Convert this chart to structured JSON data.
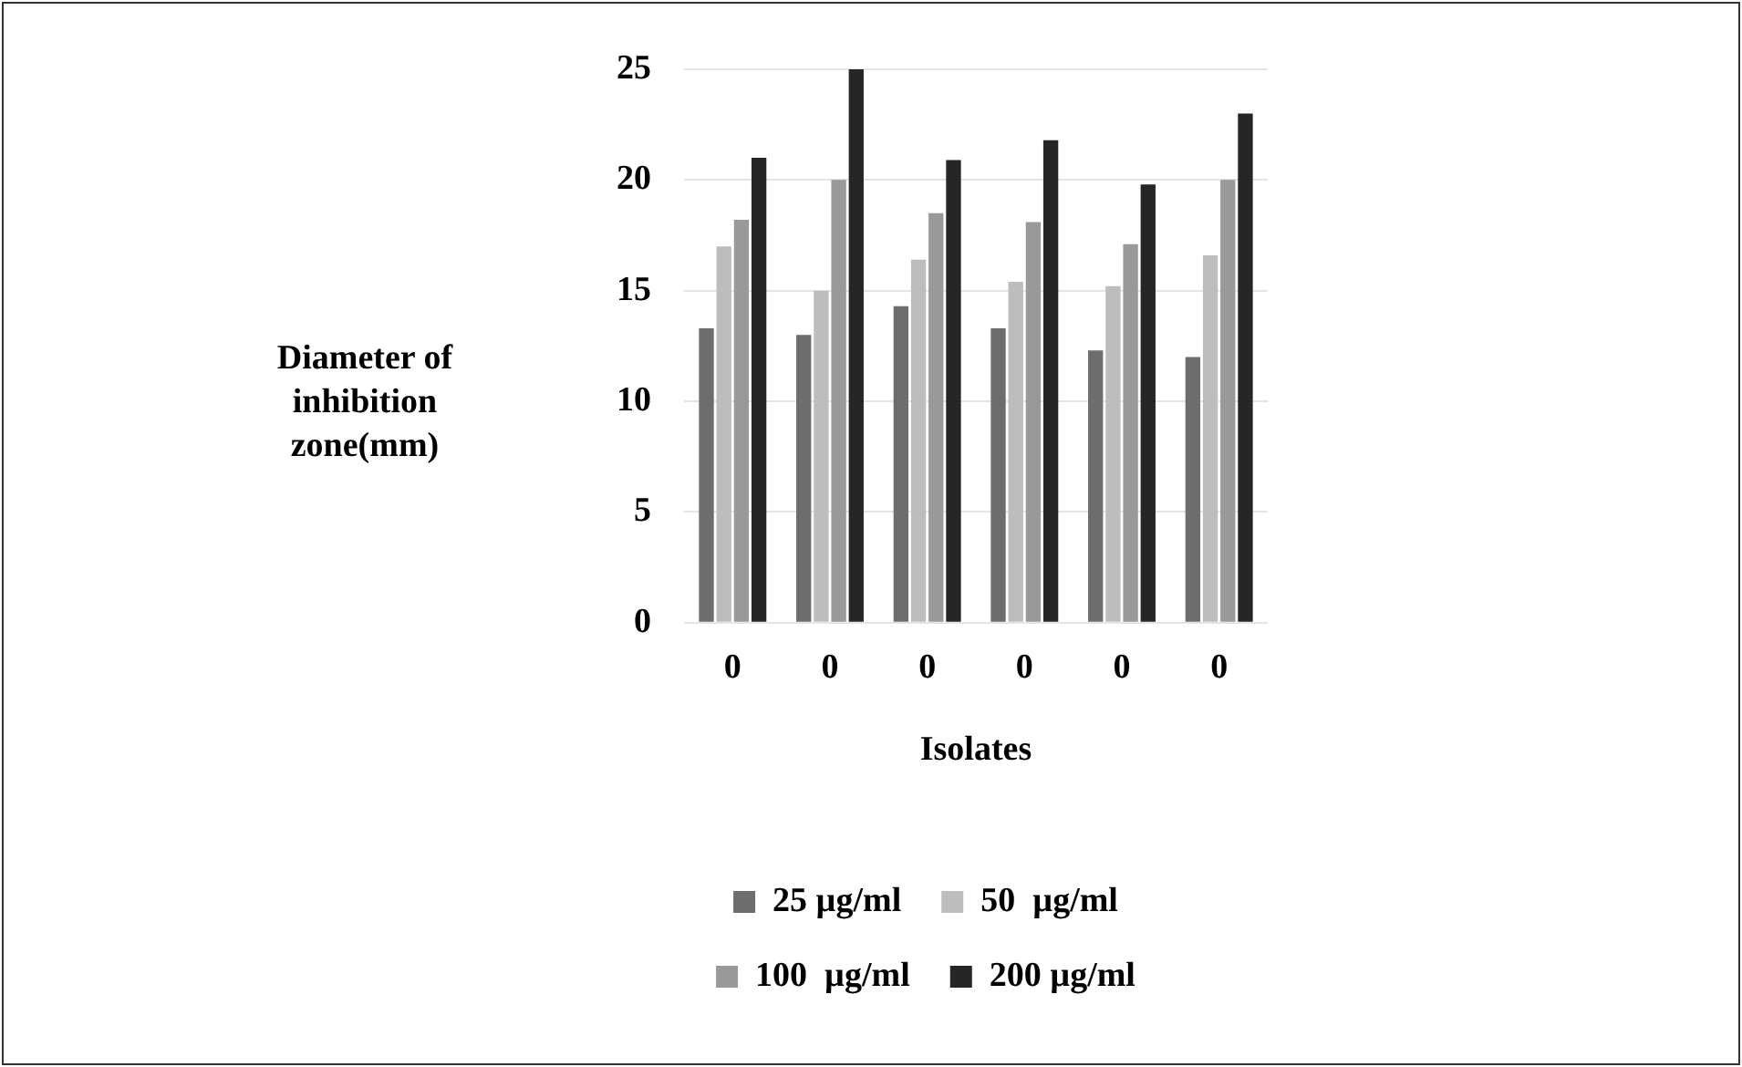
{
  "chart_data": {
    "type": "bar",
    "ylabel": "Diameter of inhibition zone(mm)",
    "xlabel": "Isolates",
    "categories": [
      "0",
      "0",
      "0",
      "0",
      "0",
      "0"
    ],
    "series": [
      {
        "name": "25 µg/ml",
        "color": "#6d6d6d",
        "values": [
          13.3,
          13,
          14.3,
          13.3,
          12.3,
          12
        ]
      },
      {
        "name": "50  µg/ml",
        "color": "#bdbdbd",
        "values": [
          17,
          15,
          16.4,
          15.4,
          15.2,
          16.6
        ]
      },
      {
        "name": "100  µg/ml",
        "color": "#999999",
        "values": [
          18.2,
          20,
          18.5,
          18.1,
          17.1,
          20
        ]
      },
      {
        "name": "200 µg/ml",
        "color": "#262626",
        "values": [
          21,
          25,
          20.9,
          21.8,
          19.8,
          23
        ]
      }
    ],
    "ylim": [
      0,
      25
    ],
    "yticks": [
      0,
      5,
      10,
      15,
      20,
      25
    ],
    "grid": "y",
    "legend": "bottom"
  }
}
